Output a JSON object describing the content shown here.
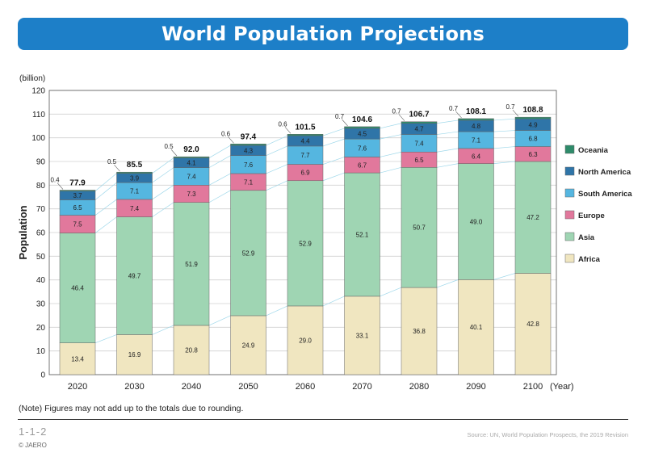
{
  "header": {
    "title": "World Population Projections"
  },
  "chart_data": {
    "type": "bar",
    "stacked": true,
    "title": "World Population Projections",
    "ylabel": "Population",
    "yunit": "(billion)",
    "xunit": "(Year)",
    "ylim": [
      0,
      120
    ],
    "yticks": [
      0,
      10,
      20,
      30,
      40,
      50,
      60,
      70,
      80,
      90,
      100,
      110,
      120
    ],
    "grid": true,
    "legend_position": "right",
    "categories": [
      "2020",
      "2030",
      "2040",
      "2050",
      "2060",
      "2070",
      "2080",
      "2090",
      "2100"
    ],
    "series": [
      {
        "name": "Africa",
        "color": "#f0e6c0",
        "values": [
          13.4,
          16.9,
          20.8,
          24.9,
          29.0,
          33.1,
          36.8,
          40.1,
          42.8
        ]
      },
      {
        "name": "Asia",
        "color": "#9fd5b3",
        "values": [
          46.4,
          49.7,
          51.9,
          52.9,
          52.9,
          52.1,
          50.7,
          49.0,
          47.2
        ]
      },
      {
        "name": "Europe",
        "color": "#e1789c",
        "values": [
          7.5,
          7.4,
          7.3,
          7.1,
          6.9,
          6.7,
          6.5,
          6.4,
          6.3
        ]
      },
      {
        "name": "South America",
        "color": "#55b6e0",
        "values": [
          6.5,
          7.1,
          7.4,
          7.6,
          7.7,
          7.6,
          7.4,
          7.1,
          6.8
        ]
      },
      {
        "name": "North America",
        "color": "#2f75a8",
        "values": [
          3.7,
          3.9,
          4.1,
          4.3,
          4.4,
          4.5,
          4.7,
          4.8,
          4.9
        ]
      },
      {
        "name": "Oceania",
        "color": "#2e8b6a",
        "values": [
          0.4,
          0.5,
          0.5,
          0.6,
          0.6,
          0.7,
          0.7,
          0.7,
          0.7
        ]
      }
    ],
    "totals": [
      77.9,
      85.5,
      92.0,
      97.4,
      101.5,
      104.6,
      106.7,
      108.1,
      108.8
    ],
    "oceania_labels": [
      "0.4",
      "0.5",
      "0.5",
      "0.6",
      "0.6",
      "0.7",
      "0.7",
      "0.7",
      "0.7"
    ],
    "value_labels": [
      [
        "13.4",
        "16.9",
        "20.8",
        "24.9",
        "29.0",
        "33.1",
        "36.8",
        "40.1",
        "42.8"
      ],
      [
        "46.4",
        "49.7",
        "51.9",
        "52.9",
        "52.9",
        "52.1",
        "50.7",
        "49.0",
        "47.2"
      ],
      [
        "7.5",
        "7.4",
        "7.3",
        "7.1",
        "6.9",
        "6.7",
        "6.5",
        "6.4",
        "6.3"
      ],
      [
        "6.5",
        "7.1",
        "7.4",
        "7.6",
        "7.7",
        "7.6",
        "7.4",
        "7.1",
        "6.8"
      ],
      [
        "3.7",
        "3.9",
        "4.1",
        "4.3",
        "4.4",
        "4.5",
        "4.7",
        "4.8",
        "4.9"
      ]
    ],
    "total_labels": [
      "77.9",
      "85.5",
      "92.0",
      "97.4",
      "101.5",
      "104.6",
      "106.7",
      "108.1",
      "108.8"
    ],
    "legend_order": [
      "Oceania",
      "North America",
      "South America",
      "Europe",
      "Asia",
      "Africa"
    ]
  },
  "footer": {
    "note": "(Note) Figures may not add up to the totals due to rounding.",
    "figure_number": "1-1-2",
    "source": "Source: UN, World Population Prospects, the 2019 Revision",
    "copyright": "© JAERO"
  }
}
